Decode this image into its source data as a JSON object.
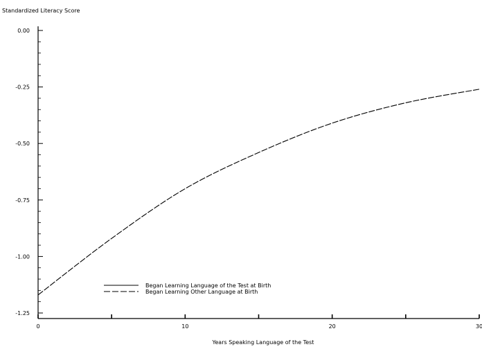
{
  "chart_data": {
    "type": "line",
    "ylabel": "Standardized Literacy Score",
    "xlabel": "Years Speaking Language of the Test",
    "xlim": [
      0,
      30
    ],
    "ylim": [
      -1.25,
      0.0
    ],
    "x_ticks": [
      0,
      5,
      10,
      15,
      20,
      25,
      30
    ],
    "x_tick_labels": [
      "0",
      "",
      "10",
      "",
      "20",
      "",
      "30"
    ],
    "y_ticks": [
      0.0,
      -0.25,
      -0.5,
      -0.75,
      -1.0,
      -1.25
    ],
    "y_tick_labels": [
      "0.00",
      "-0.25",
      "-0.50",
      "-0.75",
      "-1.00",
      "-1.25"
    ],
    "grid": false,
    "legend_position": "bottom-left",
    "series": [
      {
        "name": "Began Learning Language of the Test at Birth",
        "style": "solid",
        "x": [],
        "y": []
      },
      {
        "name": "Began Learning Other Language at Birth",
        "style": "dashed",
        "x": [
          0,
          5,
          10,
          15,
          20,
          25,
          30
        ],
        "y": [
          -1.17,
          -0.92,
          -0.7,
          -0.54,
          -0.41,
          -0.32,
          -0.26
        ]
      }
    ]
  },
  "colors": {
    "line": "#000000",
    "axis": "#000000"
  }
}
